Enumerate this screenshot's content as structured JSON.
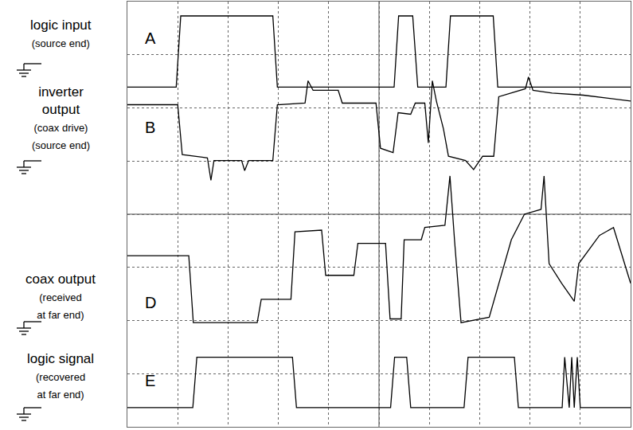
{
  "chart_data": {
    "type": "line",
    "xlim": [
      0,
      10
    ],
    "xticks": [
      0,
      1,
      2,
      3,
      4,
      5,
      6,
      7,
      8,
      9,
      10
    ],
    "ylim": [
      0,
      8
    ],
    "yticks": [
      0,
      1,
      2,
      3,
      4,
      5,
      6,
      7,
      8
    ],
    "grid": true,
    "tick_labels": false,
    "series": [
      {
        "name": "A",
        "color": "#000000",
        "label": [
          "logic input",
          "(source end)"
        ],
        "x": [
          0,
          0.97,
          1.06,
          2.89,
          2.98,
          5.3,
          5.39,
          5.67,
          5.77,
          6.33,
          6.42,
          7.27,
          7.36,
          10
        ],
        "values": [
          6.39,
          6.39,
          7.73,
          7.73,
          6.39,
          6.39,
          7.73,
          7.73,
          6.39,
          6.39,
          7.73,
          7.73,
          6.39,
          6.39
        ]
      },
      {
        "name": "B",
        "color": "#000000",
        "label": [
          "inverter",
          "output",
          "(coax drive)",
          "(source end)"
        ],
        "x": [
          0,
          1.0,
          1.09,
          1.59,
          1.66,
          1.72,
          2.27,
          2.33,
          2.41,
          2.89,
          2.98,
          3.53,
          3.59,
          3.69,
          4.19,
          4.27,
          4.94,
          5.03,
          5.28,
          5.38,
          5.63,
          5.72,
          5.91,
          5.98,
          6.06,
          6.14,
          6.28,
          6.38,
          6.72,
          6.88,
          7.06,
          7.28,
          7.38,
          7.91,
          7.97,
          8.06,
          8.44,
          9.06,
          10
        ],
        "values": [
          6.06,
          6.06,
          5.12,
          5.06,
          4.64,
          5.01,
          5.01,
          4.82,
          5.01,
          5.01,
          6.06,
          6.09,
          6.51,
          6.33,
          6.33,
          6.09,
          6.09,
          5.24,
          5.16,
          5.91,
          5.88,
          6.09,
          6.09,
          5.34,
          6.51,
          6.13,
          5.61,
          5.09,
          5.01,
          4.84,
          5.09,
          5.09,
          6.21,
          6.36,
          6.58,
          6.33,
          6.28,
          6.24,
          6.13
        ]
      },
      {
        "name": "D",
        "color": "#000000",
        "label": [
          "coax output",
          "(received",
          "at far end)"
        ],
        "x": [
          0,
          1.22,
          1.31,
          2.58,
          2.66,
          3.25,
          3.33,
          3.86,
          3.94,
          4.5,
          4.58,
          5.13,
          5.22,
          5.44,
          5.5,
          5.84,
          5.91,
          6.31,
          6.41,
          6.5,
          6.63,
          7.19,
          7.63,
          7.89,
          8.22,
          8.28,
          8.38,
          8.63,
          8.88,
          8.97,
          9.38,
          9.66,
          10
        ],
        "values": [
          3.22,
          3.22,
          1.96,
          1.96,
          2.4,
          2.4,
          3.67,
          3.7,
          2.85,
          2.85,
          3.45,
          3.45,
          2.03,
          2.03,
          3.52,
          3.52,
          3.75,
          3.79,
          4.72,
          3.52,
          1.96,
          2.06,
          3.52,
          4.0,
          4.09,
          4.72,
          3.07,
          2.7,
          2.36,
          3.07,
          3.6,
          3.75,
          2.7
        ]
      },
      {
        "name": "E",
        "color": "#000000",
        "label": [
          "logic signal",
          "(recovered",
          "at far end)"
        ],
        "x": [
          0,
          1.3,
          1.38,
          3.28,
          3.36,
          5.23,
          5.31,
          5.55,
          5.63,
          6.69,
          6.77,
          7.69,
          7.77,
          8.64,
          8.69,
          8.78,
          8.83,
          8.88,
          8.94,
          9.0,
          10
        ],
        "values": [
          0.36,
          0.36,
          1.31,
          1.31,
          0.36,
          0.36,
          1.31,
          1.31,
          0.36,
          0.36,
          1.31,
          1.31,
          0.36,
          0.36,
          1.31,
          0.36,
          1.31,
          0.36,
          1.31,
          0.36,
          0.36
        ]
      }
    ]
  }
}
